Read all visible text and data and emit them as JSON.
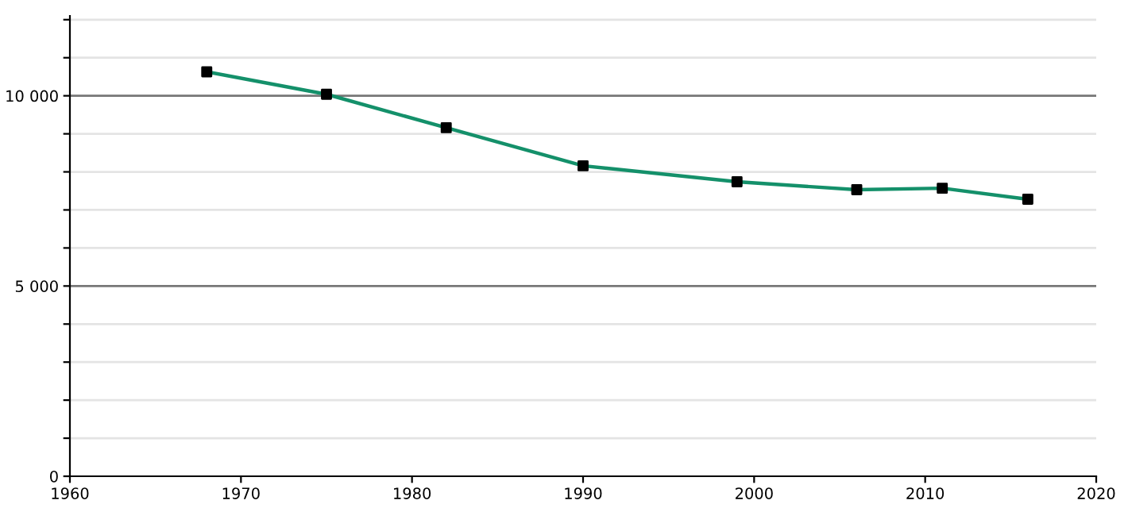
{
  "chart_data": {
    "type": "line",
    "x": [
      1968,
      1975,
      1982,
      1990,
      1999,
      2006,
      2011,
      2016
    ],
    "series": [
      {
        "color": "#14906a",
        "colors": [
          "#000000",
          "#000000",
          "#000000",
          "#000000",
          "#000000",
          "#000000",
          "#000000",
          "#000000"
        ],
        "values": [
          10630,
          10040,
          9160,
          8160,
          7740,
          7530,
          7570,
          7280
        ]
      }
    ],
    "xlim": [
      1960,
      2020
    ],
    "xticks": [
      1960,
      1970,
      1980,
      1990,
      2000,
      2010,
      2020
    ],
    "ylim": [
      0,
      12100
    ],
    "yticks": [
      {
        "value": 0,
        "label": "0"
      },
      {
        "value": 1000,
        "label": null
      },
      {
        "value": 2000,
        "label": null
      },
      {
        "value": 3000,
        "label": null
      },
      {
        "value": 4000,
        "label": null
      },
      {
        "value": 5000,
        "label": "5 000"
      },
      {
        "value": 6000,
        "label": null
      },
      {
        "value": 7000,
        "label": null
      },
      {
        "value": 8000,
        "label": null
      },
      {
        "value": 9000,
        "label": null
      },
      {
        "value": 10000,
        "label": "10 000"
      },
      {
        "value": 11000,
        "label": null
      },
      {
        "value": 12000,
        "label": null
      }
    ],
    "grid": "y",
    "marker": "square",
    "line_style": "solid",
    "legend": false
  }
}
